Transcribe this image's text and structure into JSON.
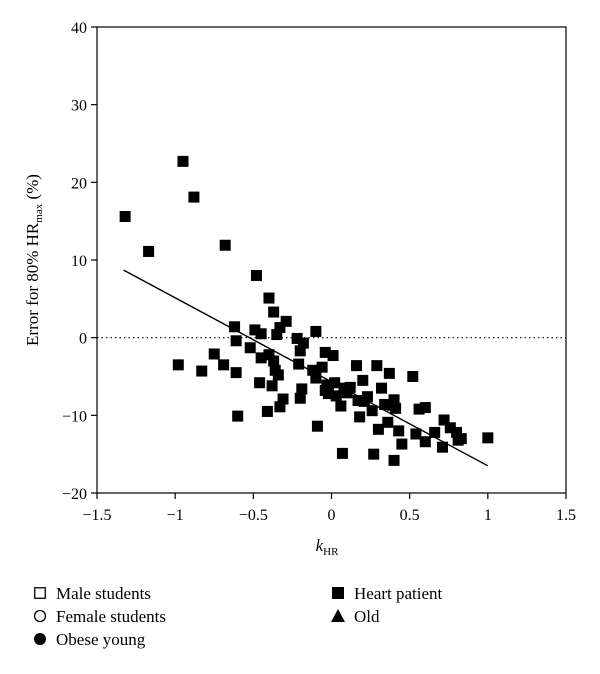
{
  "chart_data": {
    "type": "scatter",
    "title": "",
    "xlabel": "k",
    "xlabel_sub": "HR",
    "ylabel_prefix": "Error for 80% HR",
    "ylabel_sub": "max",
    "ylabel_suffix": " (%)",
    "xlim": [
      -1.5,
      1.5
    ],
    "ylim": [
      -20,
      40
    ],
    "xticks": [
      -1.5,
      -1,
      -0.5,
      0,
      0.5,
      1,
      1.5
    ],
    "yticks": [
      -20,
      -10,
      0,
      10,
      20,
      30,
      40
    ],
    "xtick_labels": [
      "−1.5",
      "−1",
      "−0.5",
      "0",
      "0.5",
      "1",
      "1.5"
    ],
    "ytick_labels": [
      "−20",
      "−10",
      "0",
      "10",
      "20",
      "30",
      "40"
    ],
    "grid": false,
    "zero_line": {
      "y": 0,
      "style": "dotted"
    },
    "legend": {
      "placement": "bottom",
      "entries": [
        {
          "label": "Male students",
          "marker": "open-square"
        },
        {
          "label": "Female students",
          "marker": "open-circle"
        },
        {
          "label": "Obese young",
          "marker": "filled-circle"
        },
        {
          "label": "Heart patient",
          "marker": "filled-square"
        },
        {
          "label": "Old",
          "marker": "filled-triangle"
        }
      ]
    },
    "regression_line": {
      "x": [
        -1.33,
        1.0
      ],
      "y": [
        8.7,
        -16.5
      ]
    },
    "series": [
      {
        "name": "Heart patient",
        "marker": "filled-square",
        "color": "#000000",
        "points": [
          [
            -1.32,
            15.6
          ],
          [
            -1.17,
            11.1
          ],
          [
            -0.95,
            22.7
          ],
          [
            -0.88,
            18.1
          ],
          [
            -0.68,
            11.9
          ],
          [
            -0.98,
            -3.5
          ],
          [
            -0.83,
            -4.3
          ],
          [
            -0.75,
            -2.1
          ],
          [
            -0.69,
            -3.5
          ],
          [
            -0.62,
            1.4
          ],
          [
            -0.61,
            -0.4
          ],
          [
            -0.61,
            -4.5
          ],
          [
            -0.6,
            -10.1
          ],
          [
            -0.48,
            8.0
          ],
          [
            -0.49,
            1.0
          ],
          [
            -0.52,
            -1.3
          ],
          [
            -0.45,
            0.5
          ],
          [
            -0.45,
            -2.6
          ],
          [
            -0.46,
            -5.8
          ],
          [
            -0.4,
            5.1
          ],
          [
            -0.37,
            3.3
          ],
          [
            -0.35,
            0.4
          ],
          [
            -0.33,
            1.3
          ],
          [
            -0.29,
            2.1
          ],
          [
            -0.4,
            -2.2
          ],
          [
            -0.37,
            -3.0
          ],
          [
            -0.36,
            -4.2
          ],
          [
            -0.38,
            -6.2
          ],
          [
            -0.41,
            -9.5
          ],
          [
            -0.34,
            -4.8
          ],
          [
            -0.31,
            -7.9
          ],
          [
            -0.33,
            -8.9
          ],
          [
            -0.22,
            -0.1
          ],
          [
            -0.2,
            -1.7
          ],
          [
            -0.18,
            -0.7
          ],
          [
            -0.21,
            -3.4
          ],
          [
            -0.19,
            -6.6
          ],
          [
            -0.2,
            -7.8
          ],
          [
            -0.12,
            -4.2
          ],
          [
            -0.1,
            0.8
          ],
          [
            -0.1,
            -5.2
          ],
          [
            -0.09,
            -11.4
          ],
          [
            -0.06,
            -3.8
          ],
          [
            -0.04,
            -1.9
          ],
          [
            -0.03,
            -6.1
          ],
          [
            -0.02,
            -7.2
          ],
          [
            -0.04,
            -6.8
          ],
          [
            0.01,
            -2.3
          ],
          [
            0.02,
            -5.8
          ],
          [
            0.03,
            -7.5
          ],
          [
            0.06,
            -8.8
          ],
          [
            0.08,
            -6.5
          ],
          [
            0.07,
            -14.9
          ],
          [
            0.1,
            -7.1
          ],
          [
            0.12,
            -6.4
          ],
          [
            0.16,
            -3.6
          ],
          [
            0.17,
            -8.1
          ],
          [
            0.2,
            -5.5
          ],
          [
            0.21,
            -8.2
          ],
          [
            0.18,
            -10.2
          ],
          [
            0.23,
            -7.6
          ],
          [
            0.26,
            -9.4
          ],
          [
            0.27,
            -15.0
          ],
          [
            0.29,
            -3.6
          ],
          [
            0.3,
            -11.8
          ],
          [
            0.32,
            -6.5
          ],
          [
            0.34,
            -8.6
          ],
          [
            0.36,
            -10.9
          ],
          [
            0.37,
            -4.6
          ],
          [
            0.39,
            -8.7
          ],
          [
            0.4,
            -15.8
          ],
          [
            0.4,
            -8.0
          ],
          [
            0.41,
            -9.1
          ],
          [
            0.43,
            -12.0
          ],
          [
            0.45,
            -13.7
          ],
          [
            0.52,
            -5.0
          ],
          [
            0.54,
            -12.4
          ],
          [
            0.56,
            -9.2
          ],
          [
            0.6,
            -9.0
          ],
          [
            0.6,
            -13.4
          ],
          [
            0.66,
            -12.2
          ],
          [
            0.71,
            -14.1
          ],
          [
            0.72,
            -10.6
          ],
          [
            0.76,
            -11.6
          ],
          [
            0.8,
            -12.2
          ],
          [
            0.81,
            -13.2
          ],
          [
            0.83,
            -13.0
          ],
          [
            1.0,
            -12.9
          ]
        ]
      }
    ]
  }
}
